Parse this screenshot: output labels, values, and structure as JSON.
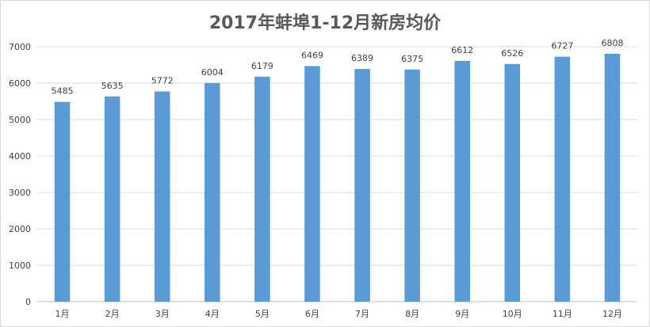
{
  "chart_data": {
    "type": "bar",
    "title": "2017年蚌埠1-12月新房均价",
    "categories": [
      "1月",
      "2月",
      "3月",
      "4月",
      "5月",
      "6月",
      "7月",
      "8月",
      "9月",
      "10月",
      "11月",
      "12月"
    ],
    "values": [
      5485,
      5635,
      5772,
      6004,
      6179,
      6469,
      6389,
      6375,
      6612,
      6526,
      6727,
      6808
    ],
    "yticks": [
      0,
      1000,
      2000,
      3000,
      4000,
      5000,
      6000,
      7000
    ],
    "ylim": [
      0,
      7000
    ],
    "grid": true,
    "legend": "none",
    "colors": {
      "bar": "#5b9bd5",
      "grid": "#d9d9d9",
      "text": "#404040",
      "title": "#595959"
    }
  }
}
